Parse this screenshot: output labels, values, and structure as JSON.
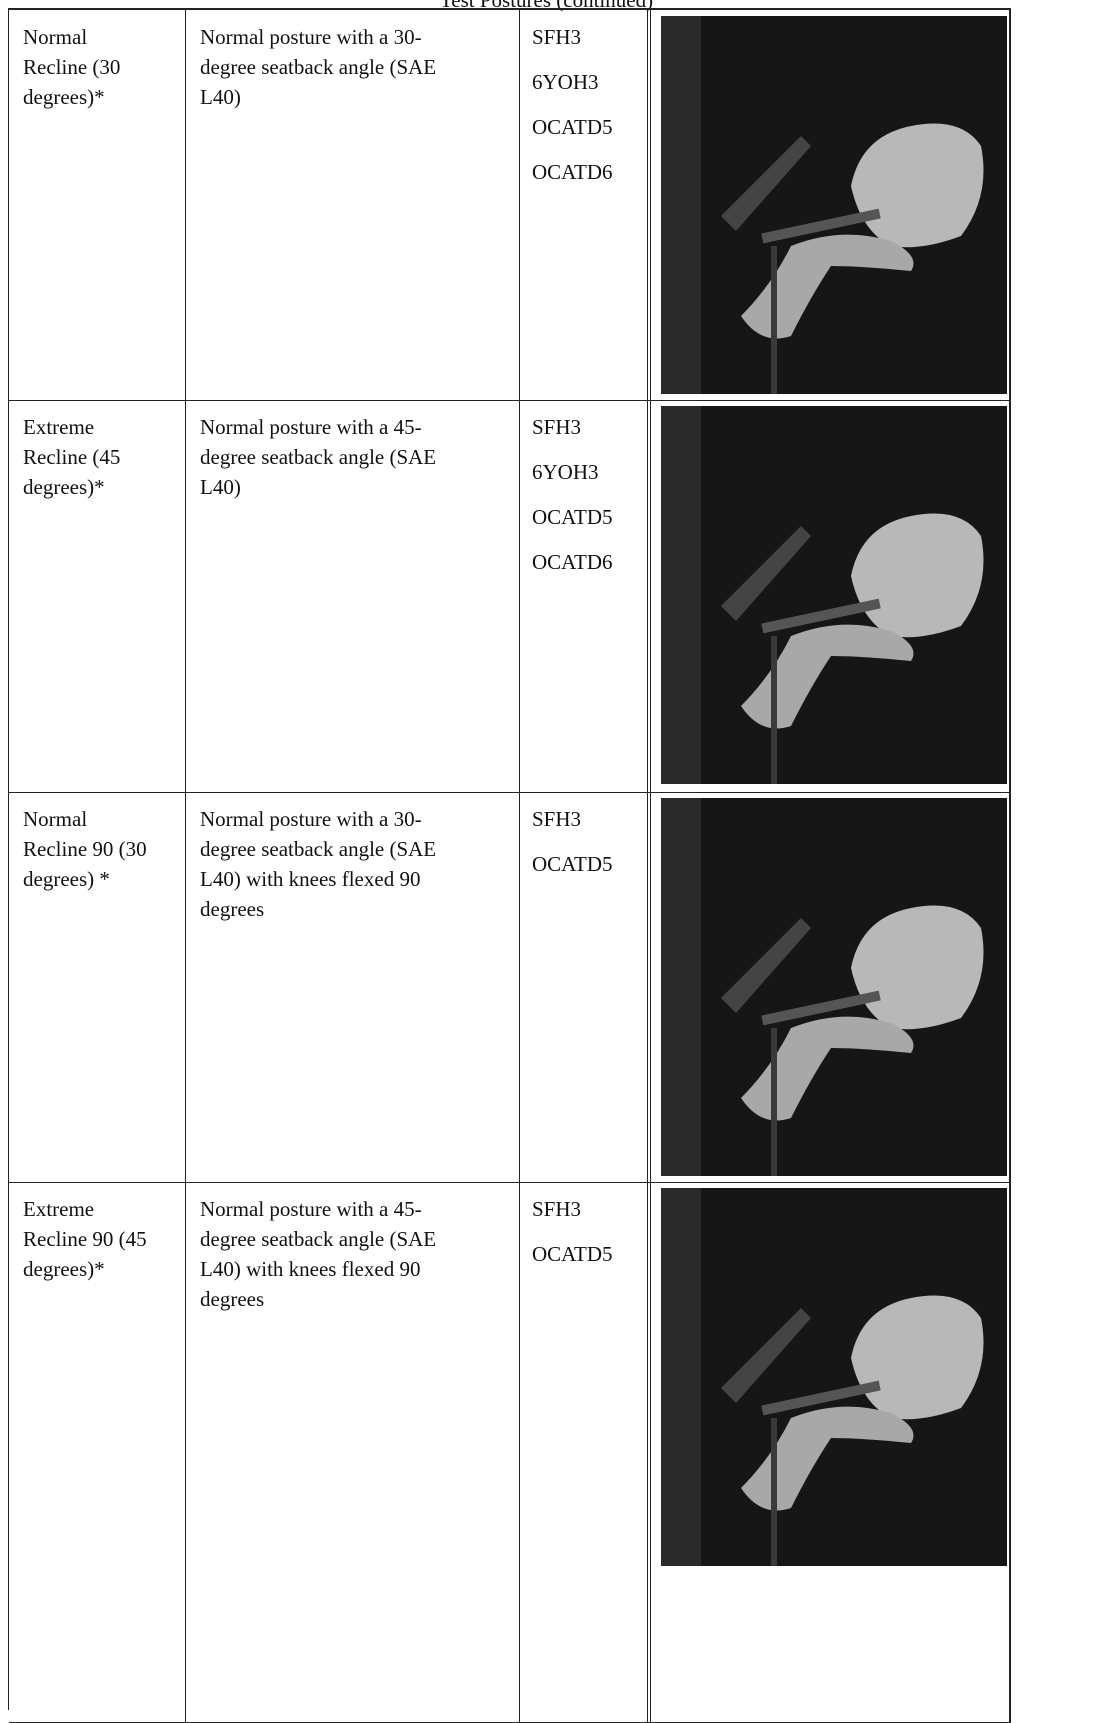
{
  "title": "Test Postures (continued)",
  "rows": [
    {
      "posture": [
        "Normal",
        "Recline (30",
        "degrees)*"
      ],
      "description": [
        "Normal posture with a 30-",
        "degree seatback angle (SAE",
        "L40)"
      ],
      "dummies": [
        "SFH3",
        "6YOH3",
        "OCATD5",
        "OCATD6"
      ]
    },
    {
      "posture": [
        "Extreme",
        "Recline (45",
        "degrees)*"
      ],
      "description": [
        "Normal posture with a 45-",
        "degree seatback angle (SAE",
        "L40)"
      ],
      "dummies": [
        "SFH3",
        "6YOH3",
        "OCATD5",
        "OCATD6"
      ]
    },
    {
      "posture": [
        "Normal",
        "Recline 90 (30",
        "degrees) *"
      ],
      "description": [
        "Normal posture with a 30-",
        "degree seatback angle (SAE",
        "L40) with knees flexed 90",
        "degrees"
      ],
      "dummies": [
        "SFH3",
        "OCATD5"
      ]
    },
    {
      "posture": [
        "Extreme",
        "Recline 90 (45",
        "degrees)*"
      ],
      "description": [
        "Normal posture with a 45-",
        "degree seatback angle (SAE",
        "L40) with knees flexed 90",
        "degrees"
      ],
      "dummies": [
        "SFH3",
        "OCATD5"
      ]
    }
  ]
}
